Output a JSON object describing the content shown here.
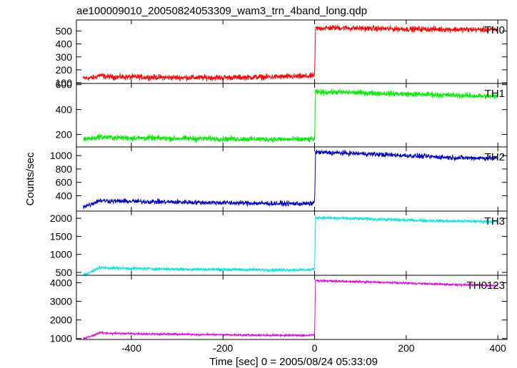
{
  "chart_data": {
    "type": "line",
    "title": "ae100009010_20050824053309_wam3_trn_4band_long.qdp",
    "xlabel": "Time [sec] 0 = 2005/08/24 05:33:09",
    "ylabel": "Counts/sec",
    "xlim": [
      -520,
      420
    ],
    "x_ticks": [
      -400,
      -200,
      0,
      200,
      400
    ],
    "grid": false,
    "panels": [
      {
        "name": "TH0",
        "color": "#ff0000",
        "ylim": [
          95,
          585
        ],
        "y_ticks": [
          100,
          200,
          300,
          400,
          500
        ],
        "x": [
          -505,
          -480,
          -470,
          -460,
          -440,
          -400,
          -300,
          -200,
          -100,
          -10,
          0,
          2,
          50,
          100,
          200,
          300,
          400
        ],
        "values": [
          135,
          140,
          160,
          150,
          145,
          145,
          140,
          140,
          145,
          150,
          160,
          520,
          525,
          520,
          515,
          512,
          510
        ],
        "noise": 18
      },
      {
        "name": "TH1",
        "color": "#00ee00",
        "ylim": [
          100,
          610
        ],
        "y_ticks": [
          200,
          400,
          600
        ],
        "x": [
          -505,
          -480,
          -470,
          -460,
          -440,
          -400,
          -300,
          -200,
          -100,
          -10,
          0,
          2,
          50,
          100,
          200,
          300,
          400
        ],
        "values": [
          165,
          170,
          182,
          178,
          175,
          172,
          168,
          165,
          162,
          160,
          165,
          540,
          540,
          535,
          525,
          515,
          505
        ],
        "noise": 18
      },
      {
        "name": "TH2",
        "color": "#0000cc",
        "ylim": [
          170,
          1130
        ],
        "y_ticks": [
          400,
          600,
          800,
          1000
        ],
        "x": [
          -505,
          -490,
          -480,
          -470,
          -460,
          -440,
          -400,
          -300,
          -200,
          -100,
          -10,
          0,
          2,
          50,
          100,
          200,
          300,
          400
        ],
        "values": [
          240,
          270,
          300,
          330,
          325,
          320,
          315,
          305,
          295,
          285,
          280,
          300,
          1050,
          1040,
          1030,
          1000,
          970,
          960
        ],
        "noise": 30
      },
      {
        "name": "TH3",
        "color": "#00e5e5",
        "ylim": [
          420,
          2200
        ],
        "y_ticks": [
          500,
          1000,
          1500,
          2000
        ],
        "x": [
          -505,
          -490,
          -480,
          -470,
          -460,
          -440,
          -400,
          -300,
          -200,
          -100,
          -10,
          0,
          2,
          50,
          100,
          200,
          300,
          400
        ],
        "values": [
          430,
          500,
          560,
          640,
          630,
          620,
          610,
          590,
          580,
          570,
          570,
          600,
          2020,
          2000,
          1990,
          1950,
          1920,
          1910
        ],
        "noise": 35
      },
      {
        "name": "TH0123",
        "color": "#e000e0",
        "ylim": [
          950,
          4400
        ],
        "y_ticks": [
          1000,
          2000,
          3000,
          4000
        ],
        "x": [
          -505,
          -490,
          -480,
          -470,
          -460,
          -440,
          -400,
          -300,
          -200,
          -100,
          -10,
          0,
          2,
          50,
          100,
          200,
          300,
          400
        ],
        "values": [
          1000,
          1100,
          1200,
          1320,
          1300,
          1280,
          1260,
          1230,
          1200,
          1180,
          1170,
          1200,
          4120,
          4080,
          4050,
          3980,
          3900,
          3850
        ],
        "noise": 45
      }
    ]
  }
}
